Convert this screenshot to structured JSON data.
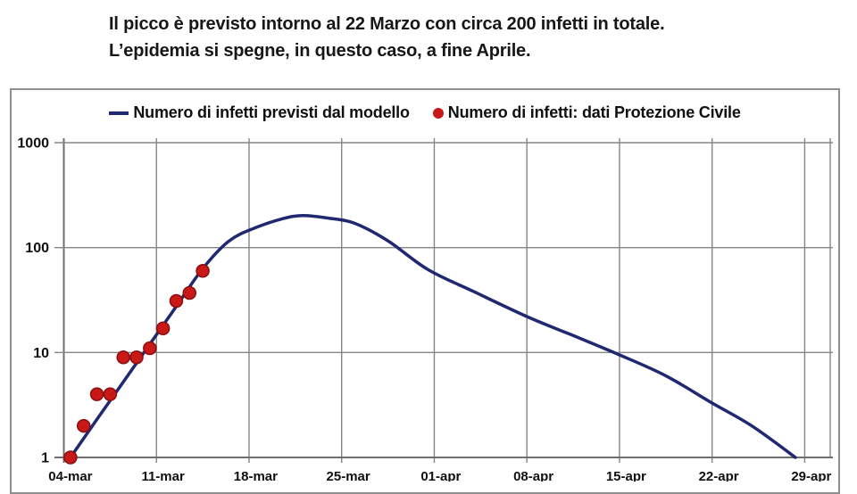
{
  "caption": {
    "line1": "Il picco è previsto intorno al 22 Marzo con circa 200 infetti in totale.",
    "line2": "L’epidemia si spegne, in questo caso, a fine Aprile."
  },
  "colors": {
    "model_line": "#1f2870",
    "data_point_fill": "#c81818",
    "data_point_edge": "#8a0f0f",
    "gridline": "#858585",
    "axis": "#6e6e6e",
    "text": "#101010",
    "panel_border": "#8f8f8f"
  },
  "chart_data": {
    "type": "line",
    "title": "Il picco è previsto intorno al 22 Marzo con circa 200 infetti in totale. L’epidemia si spegne, in questo caso, a fine Aprile.",
    "xlabel": "",
    "ylabel": "",
    "y_scale": "log",
    "ylim": [
      1,
      1000
    ],
    "y_ticks": [
      1000,
      100,
      10,
      1
    ],
    "x_ticks": [
      {
        "day": 0,
        "label": "04-mar"
      },
      {
        "day": 7,
        "label": "11-mar"
      },
      {
        "day": 14,
        "label": "18-mar"
      },
      {
        "day": 21,
        "label": "25-mar"
      },
      {
        "day": 28,
        "label": "01-apr"
      },
      {
        "day": 35,
        "label": "08-apr"
      },
      {
        "day": 42,
        "label": "15-apr"
      },
      {
        "day": 49,
        "label": "22-apr"
      },
      {
        "day": 56,
        "label": "29-apr"
      }
    ],
    "x_range_days": [
      0,
      58
    ],
    "point_day_offset": 0.5,
    "grid": true,
    "legend_position": "top",
    "series": [
      {
        "name": "Numero di infetti previsti dal modello",
        "type": "line",
        "color": "#1f2870",
        "peak": {
          "date": "22-mar",
          "value": 200
        },
        "points_day_value": [
          [
            0,
            1
          ],
          [
            2,
            2.3
          ],
          [
            4,
            5.25
          ],
          [
            6,
            12
          ],
          [
            8,
            27.5
          ],
          [
            10,
            63
          ],
          [
            12,
            116
          ],
          [
            14,
            155
          ],
          [
            16,
            188
          ],
          [
            17.5,
            202
          ],
          [
            19.5,
            191
          ],
          [
            21.5,
            170
          ],
          [
            24,
            116
          ],
          [
            27,
            62
          ],
          [
            30.5,
            38
          ],
          [
            34.5,
            22
          ],
          [
            38,
            14.5
          ],
          [
            41.5,
            9.5
          ],
          [
            45,
            6.0
          ],
          [
            48.5,
            3.3
          ],
          [
            51.5,
            2.0
          ],
          [
            54.8,
            1.0
          ]
        ]
      },
      {
        "name": "Numero di infetti: dati Protezione Civile",
        "type": "scatter",
        "color": "#c81818",
        "edge_color": "#8a0f0f",
        "points": [
          {
            "date": "04-mar",
            "value": 1
          },
          {
            "date": "05-mar",
            "value": 2
          },
          {
            "date": "06-mar",
            "value": 4
          },
          {
            "date": "07-mar",
            "value": 4
          },
          {
            "date": "08-mar",
            "value": 9
          },
          {
            "date": "09-mar",
            "value": 9
          },
          {
            "date": "10-mar",
            "value": 11
          },
          {
            "date": "11-mar",
            "value": 17
          },
          {
            "date": "12-mar",
            "value": 31
          },
          {
            "date": "13-mar",
            "value": 37
          },
          {
            "date": "14-mar",
            "value": 60
          }
        ]
      }
    ]
  }
}
